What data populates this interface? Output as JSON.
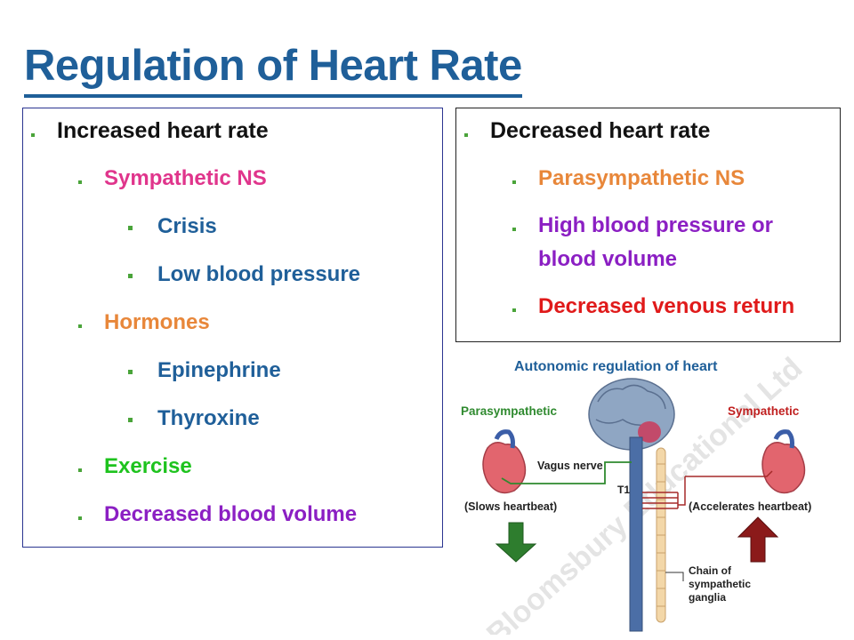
{
  "title": "Regulation of Heart Rate",
  "left_box": {
    "heading": "Increased heart rate",
    "sympathetic": "Sympathetic NS",
    "crisis": "Crisis",
    "low_bp": "Low blood pressure",
    "hormones": "Hormones",
    "epinephrine": "Epinephrine",
    "thyroxine": "Thyroxine",
    "exercise": "Exercise",
    "decreased_volume": "Decreased blood volume"
  },
  "right_box": {
    "heading": "Decreased heart rate",
    "parasympathetic": "Parasympathetic NS",
    "high_bp_line1": "High blood pressure or",
    "high_bp_line2": "blood volume",
    "venous": "Decreased venous return"
  },
  "diagram": {
    "title": "Autonomic regulation of heart",
    "parasympathetic": "Parasympathetic",
    "sympathetic": "Sympathetic",
    "vagus": "Vagus nerve",
    "t1": "T1",
    "slows": "(Slows heartbeat)",
    "accelerates": "(Accelerates heartbeat)",
    "chain_line1": "Chain of",
    "chain_line2": "sympathetic",
    "chain_line3": "ganglia",
    "watermark": "Bloomsbury Educational Ltd"
  },
  "colors": {
    "title": "#1f5f99",
    "pink": "#e0358c",
    "orange": "#e8873a",
    "green": "#1ec31e",
    "purple": "#8b1fc3",
    "red": "#e01a1a"
  }
}
